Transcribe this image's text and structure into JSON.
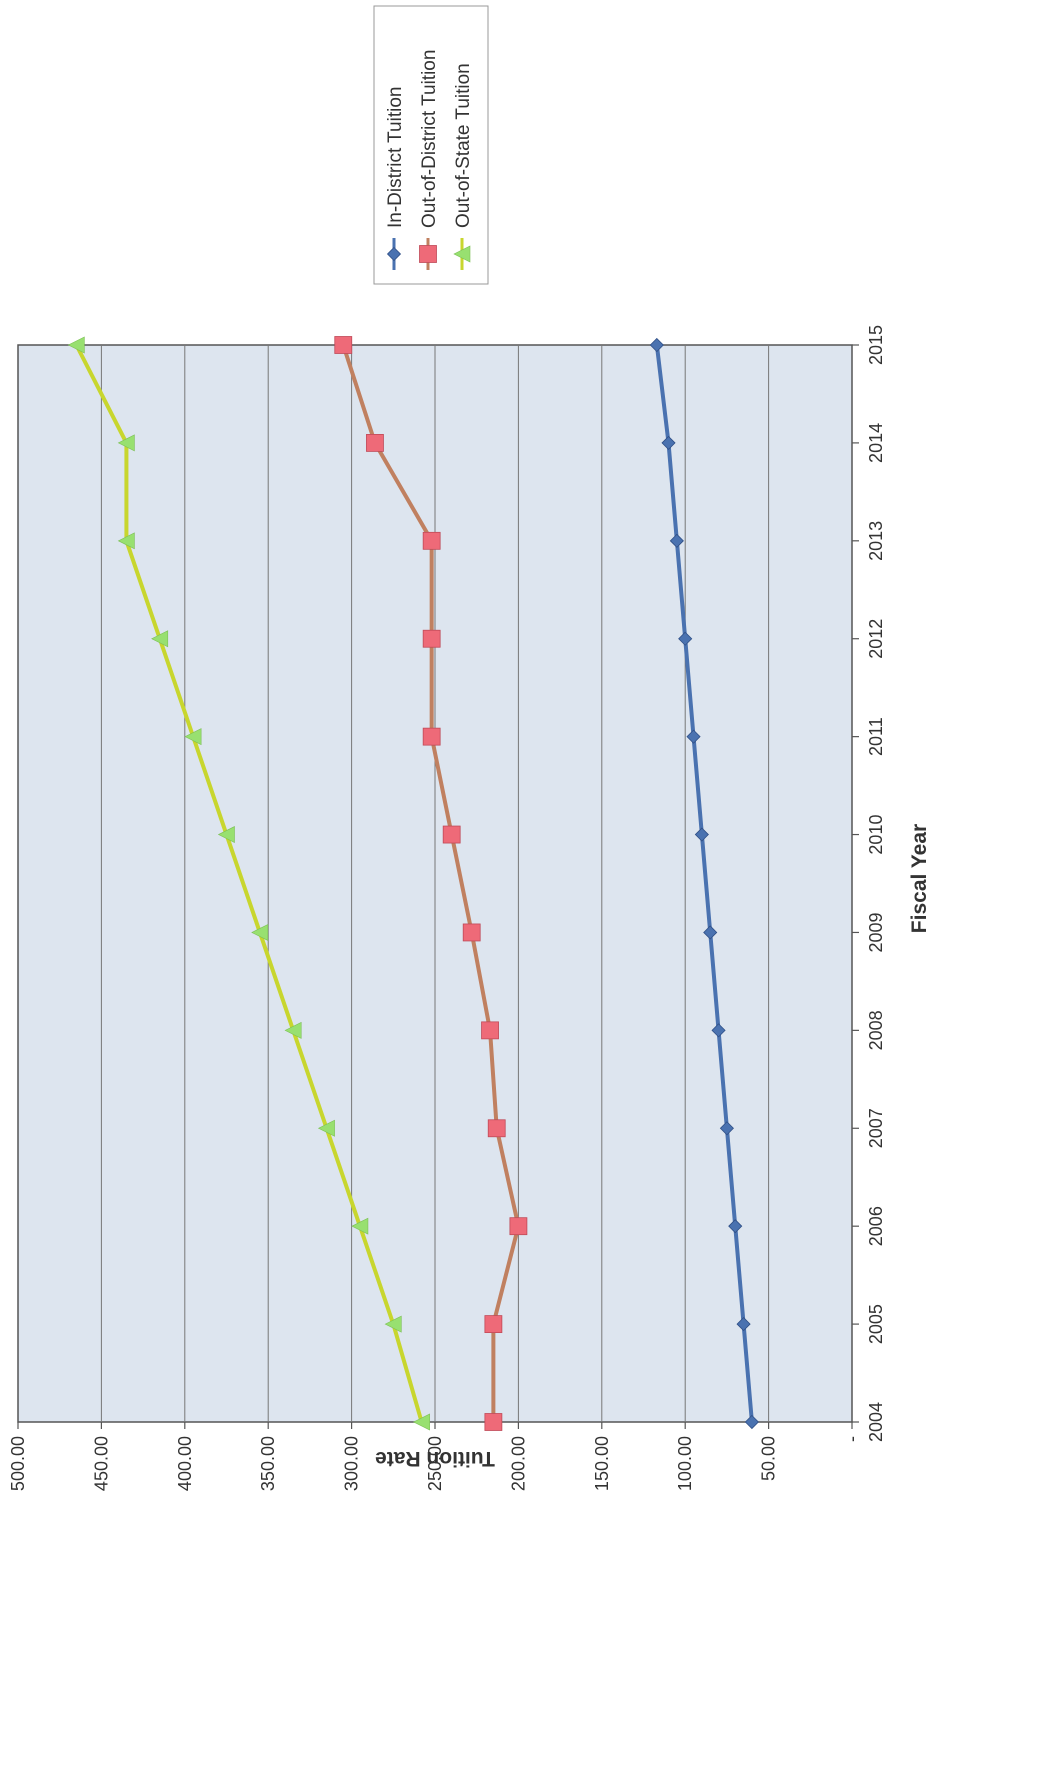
{
  "chart_data": {
    "type": "line",
    "orientation": "rotated-90-clockwise",
    "x": [
      2004,
      2005,
      2006,
      2007,
      2008,
      2009,
      2010,
      2011,
      2012,
      2013,
      2014,
      2015
    ],
    "x_tick_labels": [
      "2004",
      "2005",
      "2006",
      "2007",
      "2008",
      "2009",
      "2010",
      "2011",
      "2012",
      "2013",
      "2014",
      "2015"
    ],
    "xlabel": "Fiscal Year",
    "ylabel": "Tuition Rate",
    "ylim": [
      0,
      500
    ],
    "y_ticks": [
      0,
      50,
      100,
      150,
      200,
      250,
      300,
      350,
      400,
      450,
      500
    ],
    "y_tick_labels": [
      "-",
      "50.00",
      "100.00",
      "150.00",
      "200.00",
      "250.00",
      "300.00",
      "350.00",
      "400.00",
      "450.00",
      "500.00"
    ],
    "grid": true,
    "legend_placement": "top-right",
    "series": [
      {
        "name": "In-District Tuition",
        "color": "#4a72b0",
        "marker": "diamond",
        "values": [
          60,
          65,
          70,
          75,
          80,
          85,
          90,
          95,
          100,
          105,
          110,
          117
        ]
      },
      {
        "name": "Out-of-District Tuition",
        "color": "#c08060",
        "marker_color": "#ee6a78",
        "marker": "square",
        "values": [
          215,
          215,
          200,
          213,
          217,
          228,
          240,
          252,
          252,
          252,
          286,
          305
        ]
      },
      {
        "name": "Out-of-State Tuition",
        "color": "#c8d62e",
        "marker_color": "#98e070",
        "marker": "triangle",
        "values": [
          258,
          275,
          295,
          315,
          335,
          355,
          375,
          395,
          415,
          435,
          435,
          465
        ]
      }
    ]
  }
}
